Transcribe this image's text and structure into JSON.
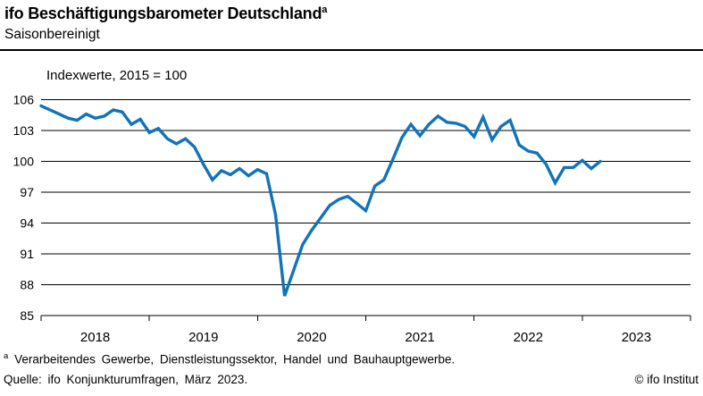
{
  "header": {
    "title": "ifo Beschäftigungsbarometer Deutschland",
    "footnote_marker": "a",
    "subtitle": "Saisonbereinigt"
  },
  "chart_data": {
    "type": "line",
    "title": "ifo Beschäftigungsbarometer Deutschland (saisonbereinigt)",
    "unit_label": "Indexwerte, 2015 = 100",
    "frequency": "monthly",
    "x_start": "2018-01",
    "x_end": "2023-03",
    "x_tick_labels": [
      "2018",
      "2019",
      "2020",
      "2021",
      "2022",
      "2023"
    ],
    "x_axis_span_years": [
      "2018-01",
      "2024-01"
    ],
    "y_ticks": [
      85,
      88,
      91,
      94,
      97,
      100,
      103,
      106
    ],
    "ylim": [
      85,
      106
    ],
    "grid": true,
    "legend_position": "none",
    "line_color": "#1173b8",
    "series": [
      {
        "name": "ifo Beschäftigungsbarometer",
        "values": [
          105.4,
          105.0,
          104.6,
          104.2,
          104.0,
          104.6,
          104.2,
          104.4,
          105.0,
          104.8,
          103.6,
          104.1,
          102.8,
          103.2,
          102.2,
          101.7,
          102.2,
          101.4,
          99.7,
          98.2,
          99.1,
          98.7,
          99.3,
          98.6,
          99.2,
          98.8,
          94.8,
          86.9,
          89.4,
          91.9,
          93.3,
          94.5,
          95.7,
          96.3,
          96.6,
          95.9,
          95.2,
          97.6,
          98.2,
          100.2,
          102.3,
          103.6,
          102.5,
          103.6,
          104.4,
          103.8,
          103.7,
          103.4,
          102.4,
          104.3,
          102.1,
          103.4,
          104.0,
          101.6,
          101.0,
          100.8,
          99.7,
          97.9,
          99.4,
          99.4,
          100.1,
          99.3,
          100.0
        ]
      }
    ]
  },
  "footer": {
    "footnote_marker": "a",
    "footnote_text": "Verarbeitendes Gewerbe, Dienstleistungssektor, Handel und Bauhauptgewerbe.",
    "source": "Quelle: ifo Konjunkturumfragen, März 2023.",
    "copyright": "© ifo Institut"
  }
}
